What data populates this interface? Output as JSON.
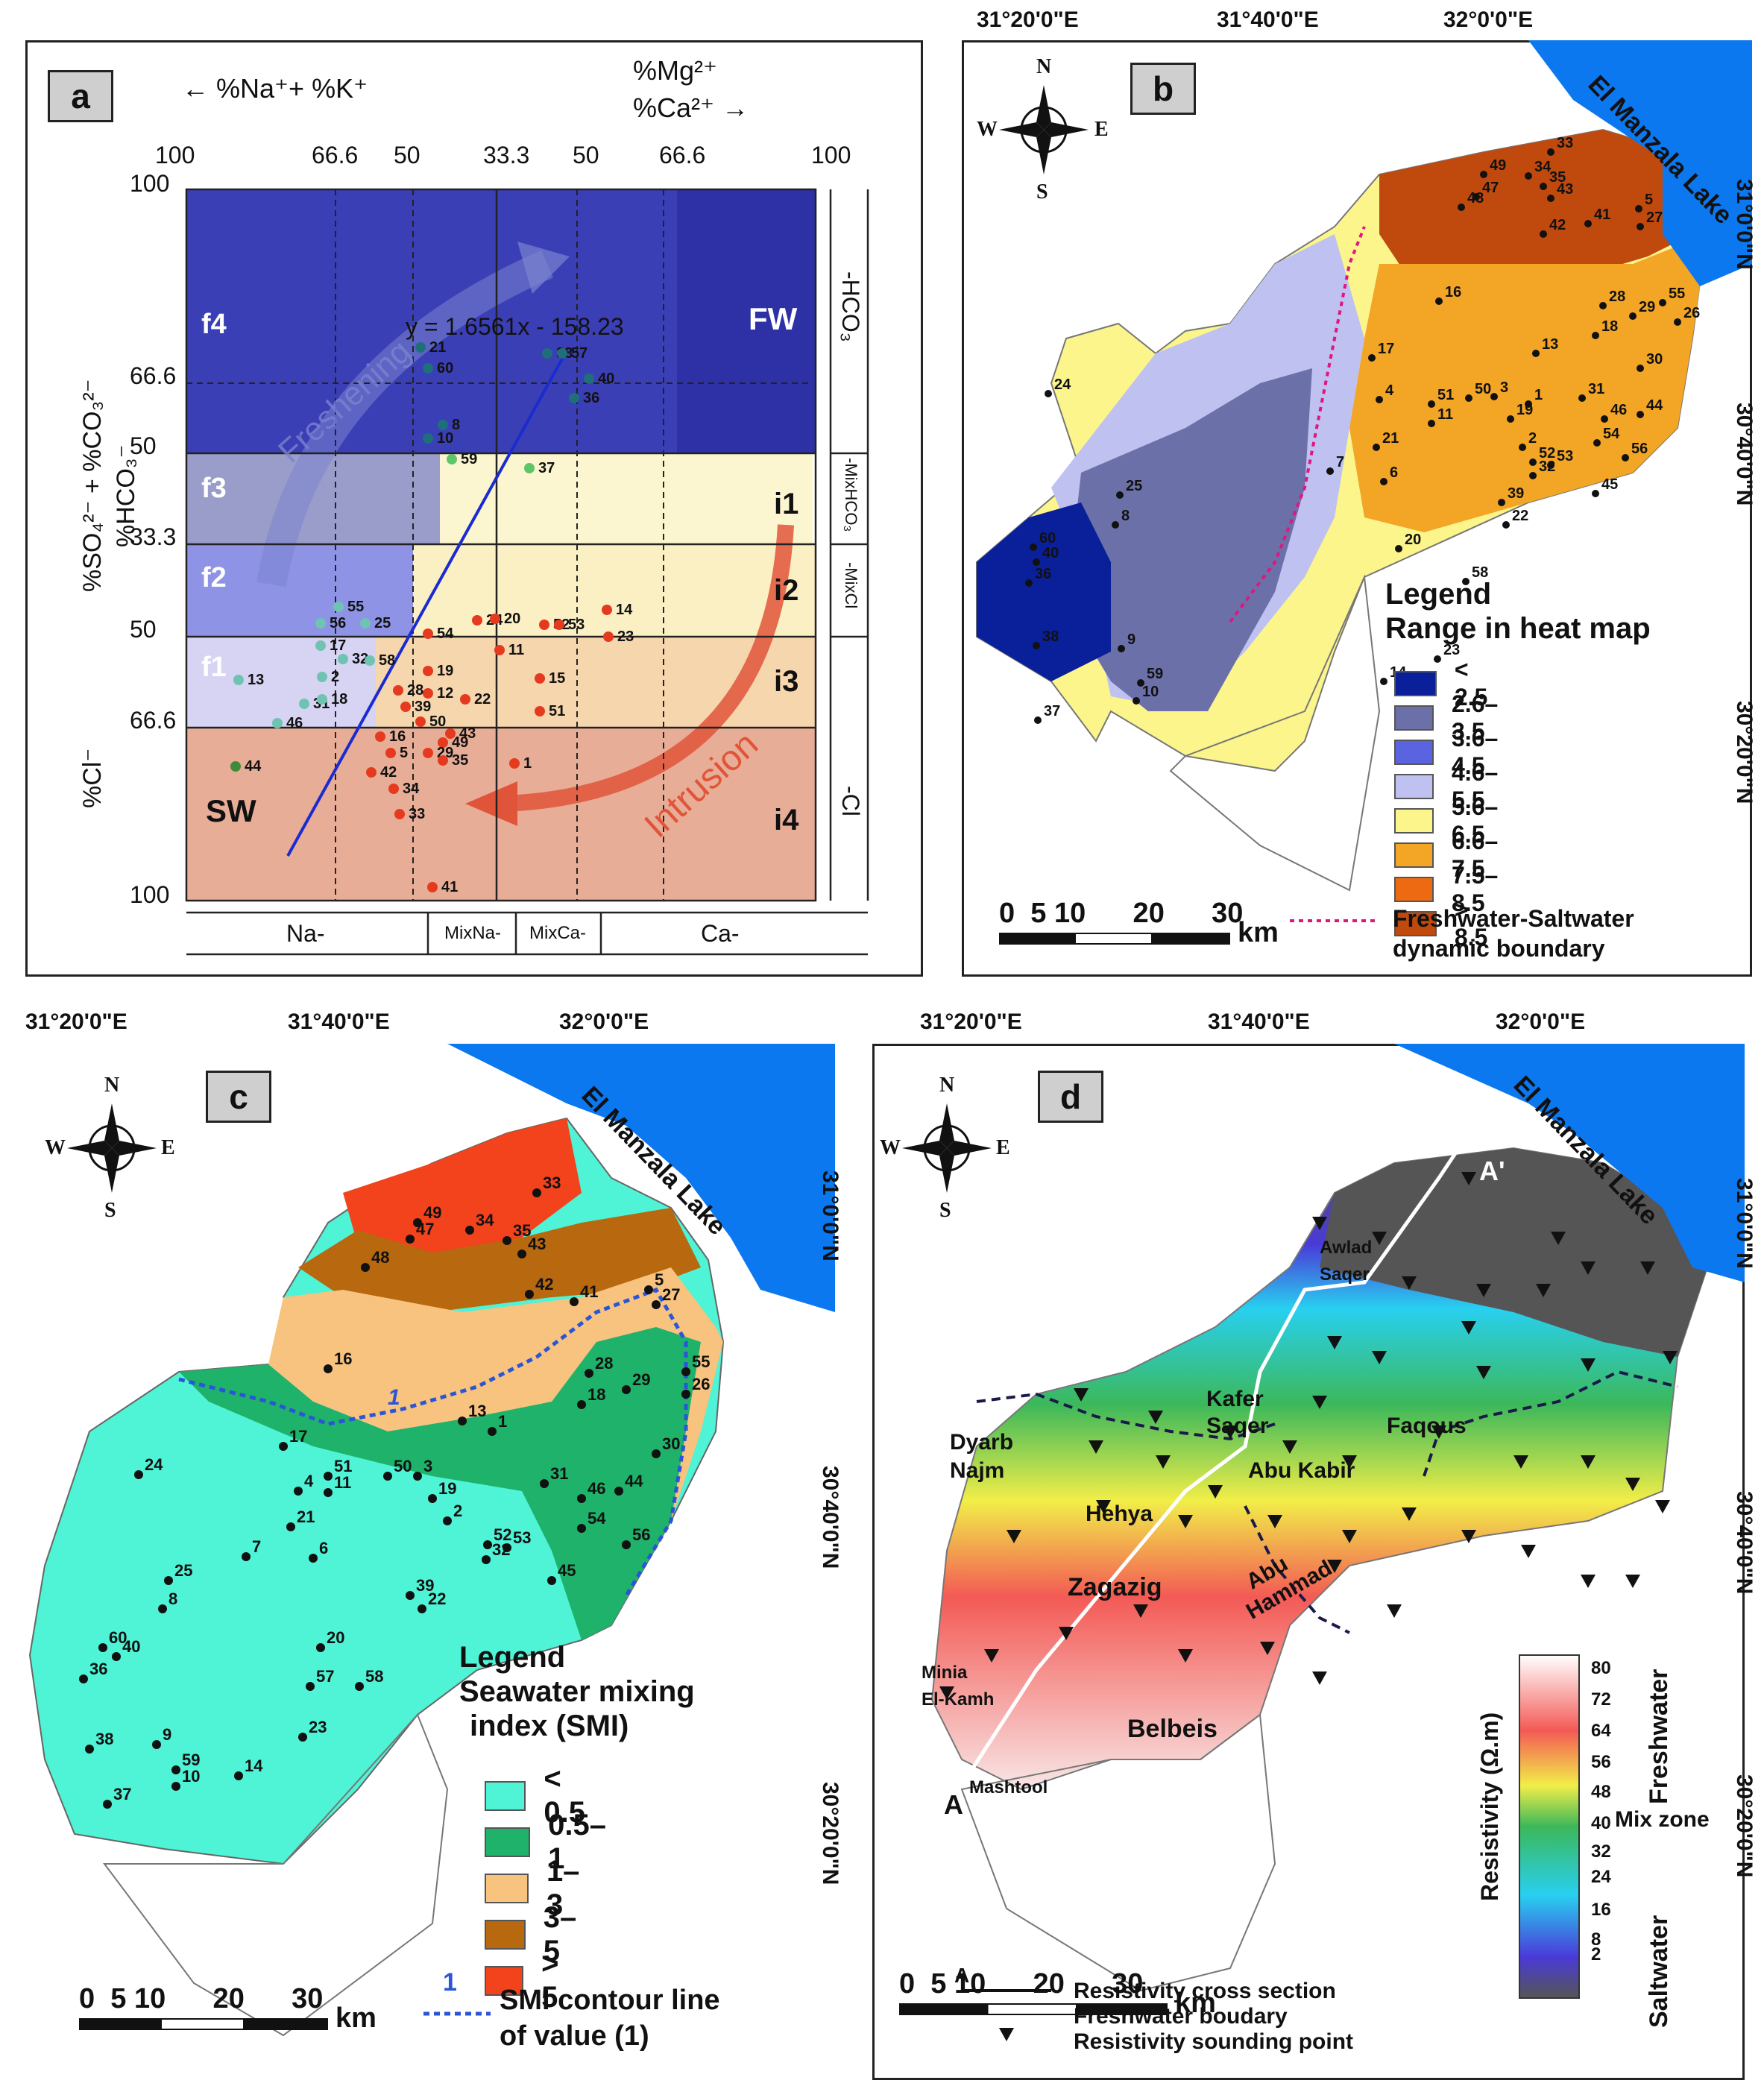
{
  "panel_a": {
    "label": "a",
    "cation_left": "%Na⁺+ %K⁺",
    "cation_right_1": "%Mg²⁺",
    "cation_right_2": "%Ca²⁺",
    "top_ticks": [
      "100",
      "66.6",
      "50",
      "33.3",
      "50",
      "66.6",
      "100"
    ],
    "left_ticks": [
      "100",
      "66.6",
      "50",
      "33.3",
      "50",
      "66.6",
      "100"
    ],
    "y_axis_label_top": "%SO₄²⁻ + %CO₃²⁻",
    "y_axis_label_mid": "%HCO₃⁻",
    "y_axis_label_bottom": "%Cl⁻",
    "equation": "y = 1.6561x - 158.23",
    "zones_left": [
      "f4",
      "f3",
      "f2",
      "f1"
    ],
    "zones_right": [
      "i1",
      "i2",
      "i3",
      "i4"
    ],
    "fw_label": "FW",
    "sw_label": "SW",
    "freshening_label": "Freshening",
    "intrusion_label": "Intrusion",
    "right_labels": [
      "-HCO₃",
      "-MixHCO₃",
      "-MixCl",
      "-Cl"
    ],
    "bottom_labels": [
      "Na-",
      "MixNa-",
      "MixCa-",
      "Ca-"
    ],
    "colors": {
      "f4": "#3b3fb5",
      "f3": "#9a9cc9",
      "f2": "#8f93e6",
      "f1": "#d7d3f3",
      "i1": "#fbf6cf",
      "i2": "#fbf0c4",
      "i3": "#f6d6ad",
      "i4": "#e8ad97"
    },
    "points": [
      {
        "id": "21",
        "color": "#1f6f7a"
      },
      {
        "id": "60",
        "color": "#1f6f7a"
      },
      {
        "id": "38",
        "color": "#1f6f7a"
      },
      {
        "id": "57",
        "color": "#1f6f7a"
      },
      {
        "id": "40",
        "color": "#1f6f7a"
      },
      {
        "id": "36",
        "color": "#1f6f7a"
      },
      {
        "id": "8",
        "color": "#1f6f7a"
      },
      {
        "id": "10",
        "color": "#1f6f7a"
      },
      {
        "id": "59",
        "color": "#5fc46a"
      },
      {
        "id": "37",
        "color": "#5fc46a"
      },
      {
        "id": "55",
        "color": "#6ec3b3"
      },
      {
        "id": "25",
        "color": "#6ec3b3"
      },
      {
        "id": "56",
        "color": "#6ec3b3"
      },
      {
        "id": "17",
        "color": "#6ec3b3"
      },
      {
        "id": "32",
        "color": "#6ec3b3"
      },
      {
        "id": "58",
        "color": "#6ec3b3"
      },
      {
        "id": "13",
        "color": "#6ec3b3"
      },
      {
        "id": "2",
        "color": "#6ec3b3"
      },
      {
        "id": "31",
        "color": "#6ec3b3"
      },
      {
        "id": "18",
        "color": "#6ec3b3"
      },
      {
        "id": "46",
        "color": "#6ec3b3"
      },
      {
        "id": "44",
        "color": "#3d8a3a"
      },
      {
        "id": "54",
        "color": "#e53a1f"
      },
      {
        "id": "24",
        "color": "#e53a1f"
      },
      {
        "id": "20",
        "color": "#e53a1f"
      },
      {
        "id": "52",
        "color": "#e53a1f"
      },
      {
        "id": "53",
        "color": "#e53a1f"
      },
      {
        "id": "14",
        "color": "#e53a1f"
      },
      {
        "id": "23",
        "color": "#e53a1f"
      },
      {
        "id": "11",
        "color": "#e53a1f"
      },
      {
        "id": "19",
        "color": "#e53a1f"
      },
      {
        "id": "15",
        "color": "#e53a1f"
      },
      {
        "id": "12",
        "color": "#e53a1f"
      },
      {
        "id": "22",
        "color": "#e53a1f"
      },
      {
        "id": "51",
        "color": "#e53a1f"
      },
      {
        "id": "28",
        "color": "#e53a1f"
      },
      {
        "id": "39",
        "color": "#e53a1f"
      },
      {
        "id": "50",
        "color": "#e53a1f"
      },
      {
        "id": "43",
        "color": "#e53a1f"
      },
      {
        "id": "16",
        "color": "#e53a1f"
      },
      {
        "id": "49",
        "color": "#e53a1f"
      },
      {
        "id": "5",
        "color": "#e53a1f"
      },
      {
        "id": "29",
        "color": "#e53a1f"
      },
      {
        "id": "35",
        "color": "#e53a1f"
      },
      {
        "id": "42",
        "color": "#e53a1f"
      },
      {
        "id": "34",
        "color": "#e53a1f"
      },
      {
        "id": "1",
        "color": "#e53a1f"
      },
      {
        "id": "33",
        "color": "#e53a1f"
      },
      {
        "id": "41",
        "color": "#e53a1f"
      }
    ]
  },
  "panel_b": {
    "label": "b",
    "top_coords": [
      "31°20'0\"E",
      "31°40'0\"E",
      "32°0'0\"E"
    ],
    "right_coords": [
      "31°0'0\"N",
      "30°40'0\"N",
      "30°20'0\"N"
    ],
    "lake": "El Manzala Lake",
    "compass": {
      "n": "N",
      "s": "S",
      "e": "E",
      "w": "W"
    },
    "legend_title_1": "Legend",
    "legend_title_2": "Range in heat map",
    "legend": [
      {
        "label": "< 2.5",
        "color": "#0a1f9a"
      },
      {
        "label": "2.6–3.5",
        "color": "#6b70a8"
      },
      {
        "label": "3.6–4.5",
        "color": "#5a63e0"
      },
      {
        "label": "4.6–5.5",
        "color": "#bfc2f0"
      },
      {
        "label": "5.6–6.5",
        "color": "#fbf58c"
      },
      {
        "label": "6.6–7.5",
        "color": "#f3a526"
      },
      {
        "label": "7.5–8.5",
        "color": "#ee6a12"
      },
      {
        "label": "> 8.5",
        "color": "#c0490e"
      }
    ],
    "scale_nums": "0  5 10      20      30",
    "scale_unit": "km",
    "boundary_label_1": "Freshwater-Saltwater",
    "boundary_label_2": "dynamic boundary",
    "wells": [
      "33",
      "49",
      "34",
      "35",
      "43",
      "47",
      "48",
      "5",
      "41",
      "42",
      "27",
      "16",
      "28",
      "55",
      "29",
      "26",
      "18",
      "13",
      "30",
      "17",
      "24",
      "31",
      "4",
      "51",
      "50",
      "3",
      "1",
      "11",
      "19",
      "46",
      "44",
      "21",
      "2",
      "54",
      "52",
      "53",
      "32",
      "56",
      "7",
      "6",
      "45",
      "25",
      "8",
      "39",
      "22",
      "20",
      "58",
      "23",
      "9",
      "59",
      "14",
      "10",
      "37",
      "40",
      "36",
      "38",
      "60"
    ]
  },
  "panel_c": {
    "label": "c",
    "top_coords": [
      "31°20'0\"E",
      "31°40'0\"E",
      "32°0'0\"E"
    ],
    "right_coords": [
      "31°0'0\"N",
      "30°40'0\"N",
      "30°20'0\"N"
    ],
    "lake": "El Manzala Lake",
    "compass": {
      "n": "N",
      "s": "S",
      "e": "E",
      "w": "W"
    },
    "legend_title_1": "Legend",
    "legend_title_2": "Seawater mixing",
    "legend_title_3": "index (SMI)",
    "legend": [
      {
        "label": "< 0.5",
        "color": "#4ff3d6"
      },
      {
        "label": "0.5–1",
        "color": "#1fb26a"
      },
      {
        "label": "1–3",
        "color": "#f8c27f"
      },
      {
        "label": "3– 5",
        "color": "#b8680f"
      },
      {
        "label": "> 5",
        "color": "#f2431c"
      }
    ],
    "contour_value": "1",
    "scale_nums": "0  5 10      20      30",
    "scale_unit": "km",
    "smi_label_1": "SMI contour line",
    "smi_label_2": "of value (1)",
    "wells": [
      "33",
      "49",
      "34",
      "35",
      "47",
      "43",
      "48",
      "42",
      "41",
      "5",
      "27",
      "16",
      "28",
      "55",
      "29",
      "26",
      "18",
      "1",
      "13",
      "17",
      "30",
      "24",
      "51",
      "50",
      "3",
      "31",
      "4",
      "11",
      "19",
      "46",
      "44",
      "21",
      "2",
      "54",
      "52",
      "53",
      "56",
      "7",
      "6",
      "32",
      "45",
      "25",
      "39",
      "22",
      "8",
      "60",
      "40",
      "20",
      "36",
      "57",
      "58",
      "23",
      "38",
      "9",
      "59",
      "14",
      "10",
      "37"
    ]
  },
  "panel_d": {
    "label": "d",
    "top_coords": [
      "31°20'0\"E",
      "31°40'0\"E",
      "32°0'0\"E"
    ],
    "right_coords": [
      "31°0'0\"N",
      "30°40'0\"N",
      "30°20'0\"N"
    ],
    "lake": "El Manzala Lake",
    "compass": {
      "n": "N",
      "s": "S",
      "e": "E",
      "w": "W"
    },
    "places": [
      "Awlad",
      "Saqer",
      "Kafer",
      "Saqer",
      "Faqous",
      "Dyarb",
      "Najm",
      "Abu Kabir",
      "Hehya",
      "Zagazig",
      "Abu",
      "Hammad",
      "Minia",
      "El-Kamh",
      "Belbeis",
      "Mashtool"
    ],
    "section_a": "A",
    "section_a_prime": "A'",
    "colorbar_ticks": [
      "80",
      "72",
      "64",
      "56",
      "48",
      "40",
      "32",
      "24",
      "16",
      "8",
      "2"
    ],
    "colorbar_title": "Resistivity (Ω.m)",
    "zone_fresh": "Freshwater",
    "zone_mix": "Mix zone",
    "zone_salt": "Saltwater",
    "scale_nums": "0  5 10      20      30",
    "scale_unit": "km",
    "legend_line_1": "Resistivity cross section",
    "legend_line_2": "Freshwater boudary",
    "legend_line_3": "Resistivity sounding point"
  }
}
